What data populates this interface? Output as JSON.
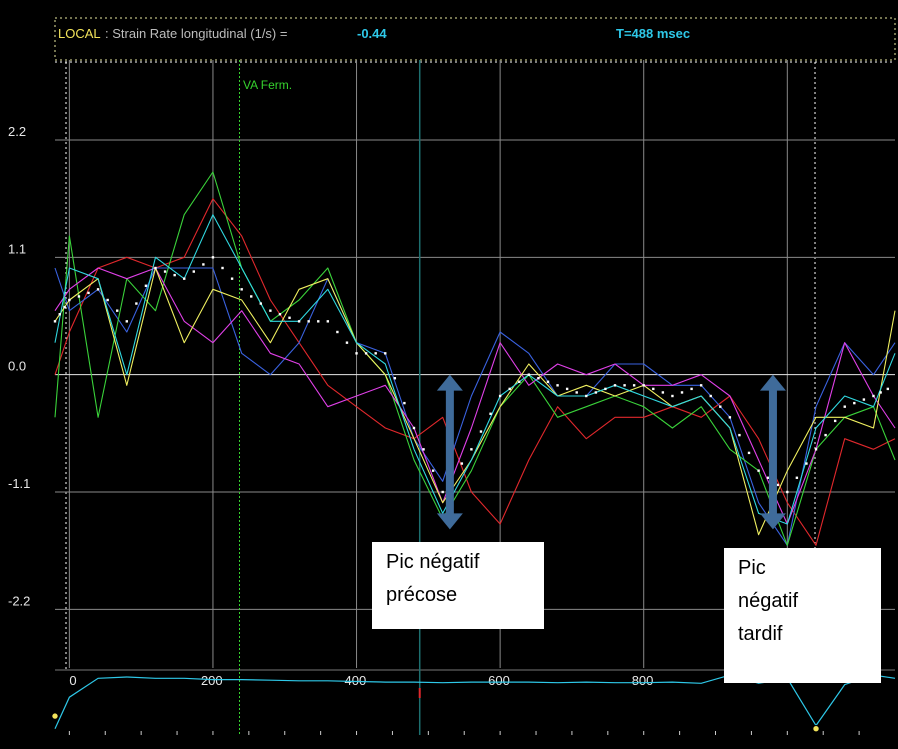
{
  "header": {
    "local_label": "LOCAL",
    "measure_label": ": Strain Rate longitudinal (1/s) =",
    "measure_value": "-0.44",
    "time_readout": "T=488 msec"
  },
  "marker": {
    "label": "VA Ferm.",
    "x_ms": 237
  },
  "cursor_ms": 488,
  "callouts": {
    "early": {
      "line1": "Pic négatif",
      "line2": "précose"
    },
    "late": {
      "line1": "Pic",
      "line2": "négatif",
      "line3": "tardif"
    }
  },
  "colors": {
    "background": "#000000",
    "grid": "#8a8a8a",
    "header_yellow": "#f2e35a",
    "header_value": "#2ec8e8",
    "marker_green": "#36d22e",
    "cursor": "#1d6f6f",
    "arrow": "#3f6b9a",
    "ecg": "#2ec8e8"
  },
  "chart_data": {
    "type": "line",
    "xlabel": "",
    "ylabel": "",
    "xlim": [
      -20,
      1150
    ],
    "ylim": [
      -2.75,
      2.95
    ],
    "x_ticks": [
      0,
      200,
      400,
      600,
      800
    ],
    "y_ticks": [
      2.2,
      1.1,
      0.0,
      -1.1,
      -2.2
    ],
    "y_tick_labels": [
      "2.2",
      "1.1",
      "0.0",
      "-1.1",
      "-2.2"
    ],
    "grid": true,
    "arrows": [
      {
        "x": 530,
        "y_top": 0.0,
        "y_bottom": -1.45
      },
      {
        "x": 980,
        "y_top": 0.0,
        "y_bottom": -1.45
      }
    ],
    "series": [
      {
        "color": "#e0282c",
        "x": [
          -20,
          0,
          40,
          80,
          120,
          160,
          200,
          240,
          280,
          320,
          360,
          400,
          440,
          480,
          520,
          560,
          600,
          640,
          680,
          720,
          760,
          800,
          840,
          880,
          920,
          960,
          1000,
          1040,
          1080,
          1120,
          1150
        ],
        "y": [
          0.0,
          0.4,
          1.0,
          1.1,
          1.0,
          1.1,
          1.65,
          1.3,
          0.7,
          0.3,
          -0.1,
          -0.3,
          -0.5,
          -0.6,
          -0.4,
          -1.1,
          -1.4,
          -0.8,
          -0.3,
          -0.6,
          -0.4,
          -0.4,
          -0.3,
          -0.4,
          -0.2,
          -0.6,
          -1.2,
          -1.6,
          -0.6,
          -0.7,
          -0.6
        ]
      },
      {
        "color": "#3a62e0",
        "x": [
          -20,
          0,
          40,
          80,
          120,
          160,
          200,
          240,
          280,
          320,
          360,
          400,
          440,
          480,
          520,
          560,
          600,
          640,
          680,
          720,
          760,
          800,
          840,
          880,
          920,
          960,
          1000,
          1040,
          1080,
          1120,
          1150
        ],
        "y": [
          1.0,
          0.6,
          0.8,
          0.4,
          1.0,
          1.0,
          1.0,
          0.2,
          0.0,
          0.3,
          0.9,
          0.3,
          0.2,
          -0.6,
          -1.0,
          -0.2,
          0.4,
          0.2,
          -0.2,
          -0.2,
          0.1,
          0.1,
          -0.1,
          -0.1,
          -0.4,
          -1.2,
          -1.6,
          -0.3,
          0.3,
          0.0,
          0.3
        ]
      },
      {
        "color": "#3ad23a",
        "x": [
          -20,
          0,
          40,
          80,
          120,
          160,
          200,
          240,
          280,
          320,
          360,
          400,
          440,
          480,
          520,
          560,
          600,
          640,
          680,
          720,
          760,
          800,
          840,
          880,
          920,
          960,
          1000,
          1040,
          1080,
          1120,
          1150
        ],
        "y": [
          -0.4,
          1.3,
          -0.4,
          0.9,
          0.6,
          1.5,
          1.9,
          1.0,
          0.5,
          0.7,
          1.0,
          0.3,
          0.0,
          -0.8,
          -1.35,
          -0.9,
          -0.3,
          0.0,
          -0.4,
          -0.3,
          -0.2,
          -0.3,
          -0.5,
          -0.3,
          -0.7,
          -0.9,
          -1.6,
          -0.7,
          -0.4,
          -0.3,
          -0.8
        ]
      },
      {
        "color": "#e040e8",
        "x": [
          -20,
          0,
          40,
          80,
          120,
          160,
          200,
          240,
          280,
          320,
          360,
          400,
          440,
          480,
          520,
          560,
          600,
          640,
          680,
          720,
          760,
          800,
          840,
          880,
          920,
          960,
          1000,
          1040,
          1080,
          1120,
          1150
        ],
        "y": [
          0.6,
          0.8,
          1.0,
          0.9,
          1.0,
          0.5,
          0.3,
          0.6,
          0.2,
          0.1,
          -0.3,
          -0.2,
          -0.1,
          -0.5,
          -1.2,
          -0.5,
          0.3,
          -0.1,
          0.1,
          0.0,
          0.1,
          -0.1,
          -0.1,
          0.0,
          -0.2,
          -0.8,
          -1.4,
          -0.7,
          0.3,
          -0.2,
          -0.5
        ]
      },
      {
        "color": "#f0f060",
        "x": [
          -20,
          0,
          40,
          80,
          120,
          160,
          200,
          240,
          280,
          320,
          360,
          400,
          440,
          480,
          520,
          560,
          600,
          640,
          680,
          720,
          760,
          800,
          840,
          880,
          920,
          960,
          1000,
          1040,
          1080,
          1120,
          1150
        ],
        "y": [
          0.5,
          0.7,
          0.9,
          -0.1,
          1.0,
          0.3,
          0.8,
          0.7,
          0.3,
          0.8,
          0.9,
          0.3,
          0.0,
          -0.6,
          -1.2,
          -0.8,
          -0.3,
          0.1,
          -0.2,
          -0.1,
          -0.2,
          -0.1,
          -0.3,
          -0.2,
          -0.5,
          -1.5,
          -0.9,
          -0.4,
          -0.4,
          -0.5,
          0.6
        ]
      },
      {
        "color": "#30d8e0",
        "x": [
          -20,
          0,
          40,
          80,
          120,
          160,
          200,
          240,
          280,
          320,
          360,
          400,
          440,
          480,
          520,
          560,
          600,
          640,
          680,
          720,
          760,
          800,
          840,
          880,
          920,
          960,
          1000,
          1040,
          1080,
          1120,
          1150
        ],
        "y": [
          0.3,
          1.0,
          0.9,
          0.0,
          1.1,
          0.9,
          1.5,
          1.0,
          0.5,
          0.5,
          0.8,
          0.3,
          0.1,
          -0.7,
          -1.3,
          -0.8,
          -0.2,
          0.0,
          -0.2,
          -0.2,
          -0.1,
          -0.2,
          -0.3,
          -0.2,
          -0.5,
          -1.3,
          -1.4,
          -0.5,
          -0.2,
          -0.3,
          0.2
        ]
      },
      {
        "color": "#ffffff",
        "style": "dotted",
        "x": [
          -20,
          0,
          40,
          80,
          120,
          160,
          200,
          240,
          280,
          320,
          360,
          400,
          440,
          480,
          520,
          560,
          600,
          640,
          680,
          720,
          760,
          800,
          840,
          880,
          920,
          960,
          1000,
          1040,
          1080,
          1120,
          1150
        ],
        "y": [
          0.5,
          0.7,
          0.8,
          0.5,
          1.0,
          0.9,
          1.1,
          0.8,
          0.6,
          0.5,
          0.5,
          0.2,
          0.2,
          -0.5,
          -1.1,
          -0.7,
          -0.2,
          0.0,
          -0.1,
          -0.2,
          -0.1,
          -0.1,
          -0.2,
          -0.1,
          -0.4,
          -0.9,
          -1.1,
          -0.7,
          -0.3,
          -0.2,
          -0.1
        ]
      }
    ],
    "ecg": {
      "color": "#2ec8e8",
      "x": [
        -20,
        0,
        40,
        80,
        120,
        160,
        200,
        240,
        280,
        320,
        360,
        400,
        440,
        480,
        520,
        560,
        600,
        640,
        680,
        720,
        760,
        800,
        840,
        880,
        920,
        960,
        1000,
        1040,
        1080,
        1120,
        1150
      ],
      "y": [
        0.1,
        0.6,
        0.9,
        0.92,
        0.9,
        0.9,
        0.88,
        0.88,
        0.87,
        0.86,
        0.86,
        0.85,
        0.84,
        0.84,
        0.83,
        0.84,
        0.84,
        0.84,
        0.83,
        0.84,
        0.83,
        0.83,
        0.84,
        0.82,
        0.95,
        0.82,
        0.9,
        0.15,
        0.8,
        0.95,
        0.9
      ]
    },
    "ecg_dots": [
      {
        "x": -20,
        "y": 0.3
      },
      {
        "x": 1040,
        "y": 0.1
      }
    ]
  }
}
